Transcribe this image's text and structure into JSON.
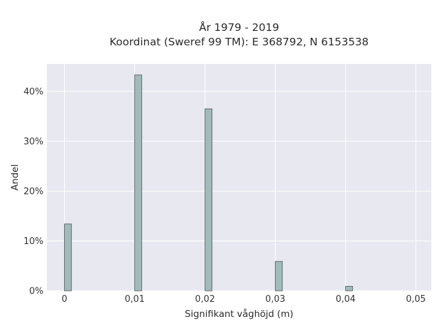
{
  "chart_data": {
    "type": "bar",
    "title_line1": "År 1979 - 2019",
    "title_line2": "Koordinat (Sweref 99 TM): E 368792, N 6153538",
    "xlabel": "Signifikant våghöjd (m)",
    "ylabel": "Andel",
    "x_ticks": [
      {
        "value": 0,
        "label": "0"
      },
      {
        "value": 0.01,
        "label": "0,01"
      },
      {
        "value": 0.02,
        "label": "0,02"
      },
      {
        "value": 0.03,
        "label": "0,03"
      },
      {
        "value": 0.04,
        "label": "0,04"
      },
      {
        "value": 0.05,
        "label": "0,05"
      }
    ],
    "y_ticks": [
      {
        "value": 0,
        "label": "0%"
      },
      {
        "value": 10,
        "label": "10%"
      },
      {
        "value": 20,
        "label": "20%"
      },
      {
        "value": 30,
        "label": "30%"
      },
      {
        "value": 40,
        "label": "40%"
      }
    ],
    "xlim": [
      -0.0025,
      0.0522
    ],
    "ylim": [
      0,
      45.5
    ],
    "bar_width": 0.001,
    "bars": [
      {
        "x": 0.0,
        "value": 13.4
      },
      {
        "x": 0.01,
        "value": 43.3
      },
      {
        "x": 0.02,
        "value": 36.5
      },
      {
        "x": 0.03,
        "value": 5.9
      },
      {
        "x": 0.04,
        "value": 0.9
      }
    ],
    "grid": true,
    "colors": {
      "plot_background": "#e8e8f1",
      "grid": "#ffffff",
      "bar_fill": "#a1bbbb",
      "bar_stroke": "#4a5656"
    }
  }
}
